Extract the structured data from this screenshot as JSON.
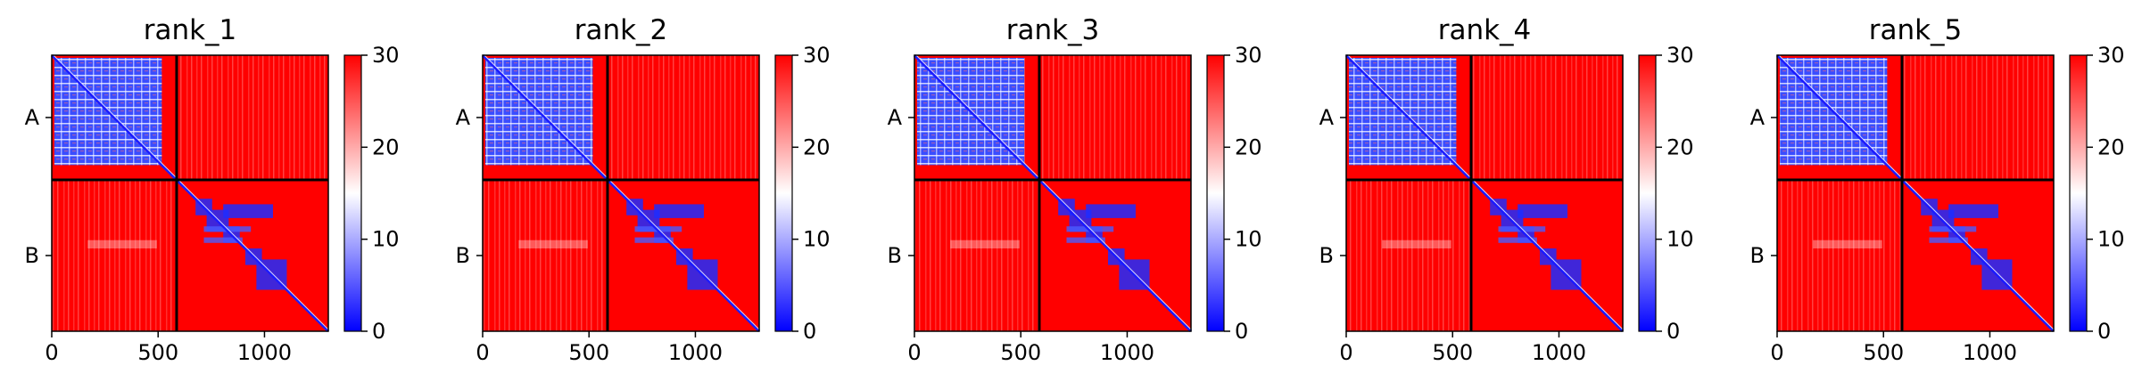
{
  "chart_data": [
    {
      "type": "heatmap",
      "title": "rank_1",
      "chain_labels": [
        "A",
        "B"
      ],
      "chain_boundary": 587,
      "x_ticks": [
        0,
        500,
        1000
      ],
      "xlim": [
        0,
        1300
      ],
      "colorbar": {
        "min": 0,
        "max": 30,
        "ticks": [
          0,
          10,
          20,
          30
        ]
      },
      "colormap": [
        "#0000ff",
        "#ffffff",
        "#ff0000"
      ]
    },
    {
      "type": "heatmap",
      "title": "rank_2",
      "chain_labels": [
        "A",
        "B"
      ],
      "chain_boundary": 587,
      "x_ticks": [
        0,
        500,
        1000
      ],
      "xlim": [
        0,
        1300
      ],
      "colorbar": {
        "min": 0,
        "max": 30,
        "ticks": [
          0,
          10,
          20,
          30
        ]
      },
      "colormap": [
        "#0000ff",
        "#ffffff",
        "#ff0000"
      ]
    },
    {
      "type": "heatmap",
      "title": "rank_3",
      "chain_labels": [
        "A",
        "B"
      ],
      "chain_boundary": 587,
      "x_ticks": [
        0,
        500,
        1000
      ],
      "xlim": [
        0,
        1300
      ],
      "colorbar": {
        "min": 0,
        "max": 30,
        "ticks": [
          0,
          10,
          20,
          30
        ]
      },
      "colormap": [
        "#0000ff",
        "#ffffff",
        "#ff0000"
      ]
    },
    {
      "type": "heatmap",
      "title": "rank_4",
      "chain_labels": [
        "A",
        "B"
      ],
      "chain_boundary": 587,
      "x_ticks": [
        0,
        500,
        1000
      ],
      "xlim": [
        0,
        1300
      ],
      "colorbar": {
        "min": 0,
        "max": 30,
        "ticks": [
          0,
          10,
          20,
          30
        ]
      },
      "colormap": [
        "#0000ff",
        "#ffffff",
        "#ff0000"
      ]
    },
    {
      "type": "heatmap",
      "title": "rank_5",
      "chain_labels": [
        "A",
        "B"
      ],
      "chain_boundary": 587,
      "x_ticks": [
        0,
        500,
        1000
      ],
      "xlim": [
        0,
        1300
      ],
      "colorbar": {
        "min": 0,
        "max": 30,
        "ticks": [
          0,
          10,
          20,
          30
        ]
      },
      "colormap": [
        "#0000ff",
        "#ffffff",
        "#ff0000"
      ]
    }
  ]
}
